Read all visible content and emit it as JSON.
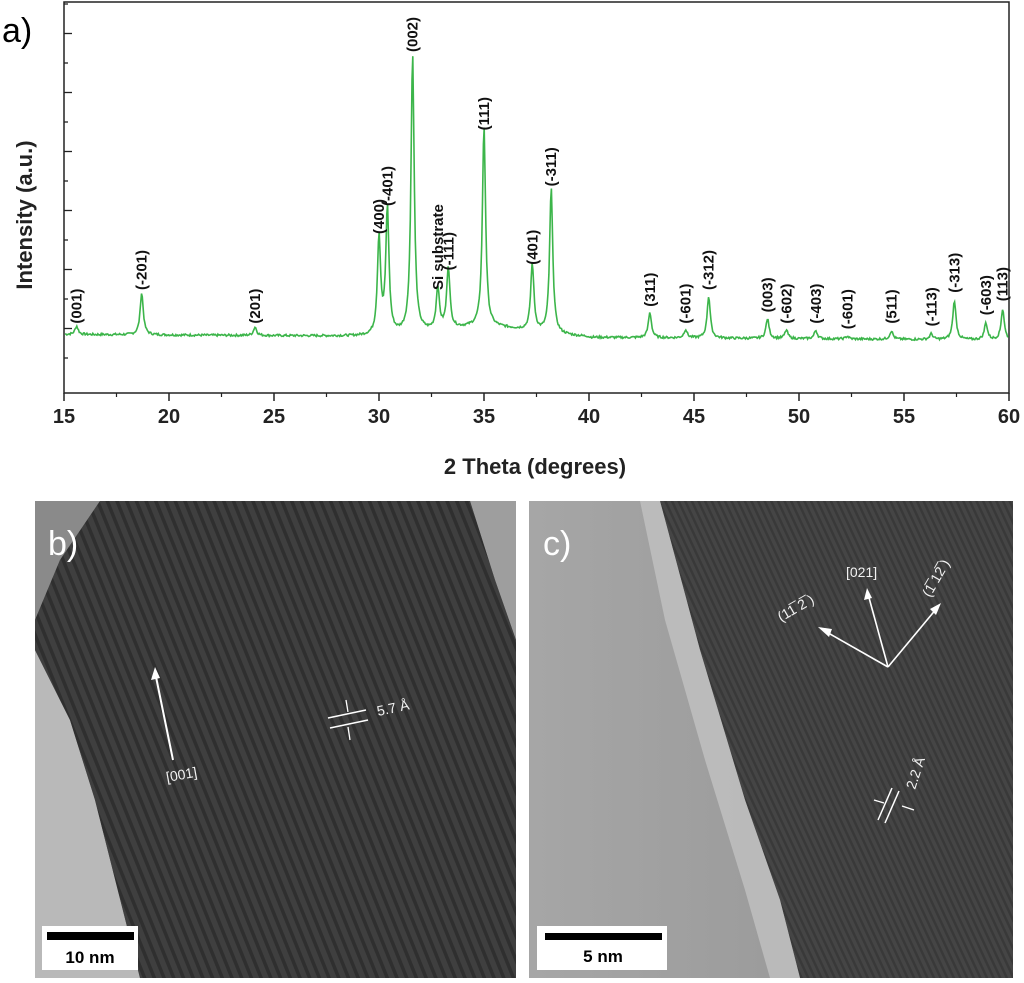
{
  "panel_a": {
    "letter": "a)",
    "chart_data": {
      "type": "line",
      "xlabel": "2 Theta (degrees)",
      "ylabel": "Intensity (a.u.)",
      "xlim": [
        15,
        60
      ],
      "x_ticks": [
        15,
        20,
        25,
        30,
        35,
        40,
        45,
        50,
        55,
        60
      ],
      "y_tick_labels": "none",
      "line_color": "#3cb54a",
      "peaks": [
        {
          "label": "(001)",
          "x": 15.6,
          "h": 0.03
        },
        {
          "label": "(-201)",
          "x": 18.7,
          "h": 0.15
        },
        {
          "label": "(201)",
          "x": 24.1,
          "h": 0.03
        },
        {
          "label": "(400)",
          "x": 30.0,
          "h": 0.35
        },
        {
          "label": "(-401)",
          "x": 30.4,
          "h": 0.45
        },
        {
          "label": "Si substrate",
          "x": 32.8,
          "h": 0.15
        },
        {
          "label": "(-111)",
          "x": 33.3,
          "h": 0.22
        },
        {
          "label": "(002)",
          "x": 31.6,
          "h": 1.0
        },
        {
          "label": "(111)",
          "x": 35.0,
          "h": 0.72
        },
        {
          "label": "(401)",
          "x": 37.3,
          "h": 0.24
        },
        {
          "label": "(-311)",
          "x": 38.2,
          "h": 0.52
        },
        {
          "label": "(311)",
          "x": 42.9,
          "h": 0.09
        },
        {
          "label": "(-601)",
          "x": 44.6,
          "h": 0.03
        },
        {
          "label": "(-312)",
          "x": 45.7,
          "h": 0.15
        },
        {
          "label": "(003)",
          "x": 48.5,
          "h": 0.07
        },
        {
          "label": "(-602)",
          "x": 49.4,
          "h": 0.03
        },
        {
          "label": "(-403)",
          "x": 50.8,
          "h": 0.03
        },
        {
          "label": "(-601)",
          "x": 52.3,
          "h": 0.01
        },
        {
          "label": "(511)",
          "x": 54.4,
          "h": 0.03
        },
        {
          "label": "(-113)",
          "x": 56.3,
          "h": 0.02
        },
        {
          "label": "(-313)",
          "x": 57.4,
          "h": 0.14
        },
        {
          "label": "(-603)",
          "x": 58.9,
          "h": 0.06
        },
        {
          "label": "(113)",
          "x": 59.7,
          "h": 0.11
        }
      ]
    }
  },
  "panel_b": {
    "letter": "b)",
    "direction_label": "[001]",
    "spacing_label": "5.7 Å",
    "scale_bar_label": "10 nm"
  },
  "panel_c": {
    "letter": "c)",
    "direction_labels": [
      "[021]",
      "(11̅ 2̅ )",
      "(1̅ 12̅ )"
    ],
    "spacing_label": "2.2 Å",
    "scale_bar_label": "5 nm"
  }
}
